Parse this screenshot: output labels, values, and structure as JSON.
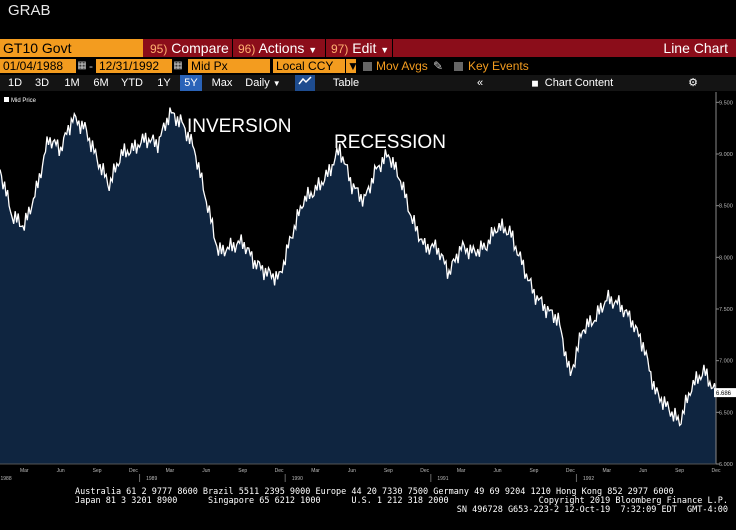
{
  "window": {
    "title": "GRAB"
  },
  "command_bar": {
    "ticker": "GT10 Govt",
    "compare": {
      "num": "95)",
      "label": "Compare"
    },
    "actions": {
      "num": "96)",
      "label": "Actions"
    },
    "edit": {
      "num": "97)",
      "label": "Edit"
    },
    "chart_type": "Line Chart"
  },
  "date_bar": {
    "start_date": "01/04/1988",
    "end_date": "12/31/1992",
    "field": "Mid Px",
    "currency": "Local CCY",
    "mov_avgs": "Mov Avgs",
    "key_events": "Key Events"
  },
  "period_bar": {
    "periods": [
      "1D",
      "3D",
      "1M",
      "6M",
      "YTD",
      "1Y",
      "5Y",
      "Max"
    ],
    "active": "5Y",
    "frequency": "Daily",
    "table": "Table",
    "chart_content": "Chart Content"
  },
  "colors": {
    "accent_orange": "#f39c1f",
    "bar_red": "#8b0d1a",
    "area_fill": "#0f2540",
    "line": "#ffffff",
    "active_blue": "#2a63b8"
  },
  "chart_data": {
    "type": "area",
    "legend": "Mid Price",
    "annotations": [
      "INVERSION",
      "RECESSION"
    ],
    "last_value_label": "6.686",
    "ylim": [
      6.0,
      9.6
    ],
    "y_ticks": [
      "9.500",
      "9.000",
      "8.500",
      "8.000",
      "7.500",
      "7.000",
      "6.500",
      "6.000"
    ],
    "x_month_labels": [
      "Mar",
      "Jun",
      "Sep",
      "Dec",
      "Mar",
      "Jun",
      "Sep",
      "Dec",
      "Mar",
      "Jun",
      "Sep",
      "Dec",
      "Mar",
      "Jun",
      "Sep",
      "Dec",
      "Mar",
      "Jun",
      "Sep",
      "Dec"
    ],
    "x_year_labels": [
      "1988",
      "1989",
      "1990",
      "1991",
      "1992"
    ],
    "x": [
      "1988-01",
      "1988-02",
      "1988-03",
      "1988-04",
      "1988-05",
      "1988-06",
      "1988-07",
      "1988-08",
      "1988-09",
      "1988-10",
      "1988-11",
      "1988-12",
      "1989-01",
      "1989-02",
      "1989-03",
      "1989-04",
      "1989-05",
      "1989-06",
      "1989-07",
      "1989-08",
      "1989-09",
      "1989-10",
      "1989-11",
      "1989-12",
      "1990-01",
      "1990-02",
      "1990-03",
      "1990-04",
      "1990-05",
      "1990-06",
      "1990-07",
      "1990-08",
      "1990-09",
      "1990-10",
      "1990-11",
      "1990-12",
      "1991-01",
      "1991-02",
      "1991-03",
      "1991-04",
      "1991-05",
      "1991-06",
      "1991-07",
      "1991-08",
      "1991-09",
      "1991-10",
      "1991-11",
      "1991-12",
      "1992-01",
      "1992-02",
      "1992-03",
      "1992-04",
      "1992-05",
      "1992-06",
      "1992-07",
      "1992-08",
      "1992-09",
      "1992-10",
      "1992-11",
      "1992-12"
    ],
    "values": [
      8.85,
      8.4,
      8.3,
      8.65,
      9.15,
      9.05,
      9.35,
      9.25,
      8.95,
      8.7,
      9.0,
      9.05,
      9.15,
      9.1,
      9.4,
      9.3,
      9.05,
      8.55,
      8.05,
      8.1,
      8.15,
      7.95,
      7.85,
      7.8,
      8.2,
      8.55,
      8.65,
      8.8,
      9.05,
      8.7,
      8.55,
      8.85,
      9.0,
      8.75,
      8.35,
      8.1,
      8.1,
      7.85,
      8.1,
      8.05,
      8.1,
      8.3,
      8.25,
      7.95,
      7.65,
      7.5,
      7.4,
      6.85,
      7.3,
      7.4,
      7.6,
      7.55,
      7.4,
      7.15,
      6.7,
      6.55,
      6.4,
      6.75,
      6.9,
      6.686
    ]
  },
  "footer": {
    "line1": "Australia 61 2 9777 8600 Brazil 5511 2395 9000 Europe 44 20 7330 7500 Germany 49 69 9204 1210 Hong Kong 852 2977 6000",
    "line2": "Japan 81 3 3201 8900      Singapore 65 6212 1000      U.S. 1 212 318 2000",
    "copyright": "Copyright 2019 Bloomberg Finance L.P.",
    "session": "SN 496728 G653-223-2 12-Oct-19  7:32:09 EDT  GMT-4:00"
  }
}
